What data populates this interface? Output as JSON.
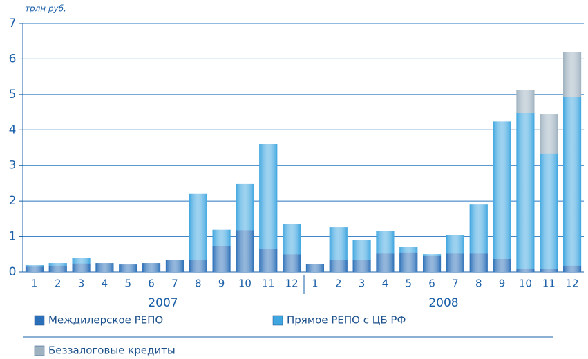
{
  "chart_data": {
    "type": "stacked_bar",
    "y_label": "трлн руб.",
    "categories": [
      "1",
      "2",
      "3",
      "4",
      "5",
      "6",
      "7",
      "8",
      "9",
      "10",
      "11",
      "12",
      "1",
      "2",
      "3",
      "4",
      "5",
      "6",
      "7",
      "8",
      "9",
      "10",
      "11",
      "12"
    ],
    "groups": [
      "2007",
      "2008"
    ],
    "series": [
      {
        "name": "Междилерское РЕПО",
        "color": "#2b6fb8",
        "values": [
          0.15,
          0.18,
          0.24,
          0.25,
          0.21,
          0.25,
          0.33,
          0.33,
          0.72,
          1.18,
          0.66,
          0.5,
          0.22,
          0.33,
          0.35,
          0.52,
          0.55,
          0.45,
          0.52,
          0.52,
          0.37,
          0.1,
          0.1,
          0.18
        ]
      },
      {
        "name": "Прямое РЕПО с ЦБ РФ",
        "color": "#3fa6e0",
        "values": [
          0.04,
          0.07,
          0.16,
          0,
          0,
          0,
          0,
          1.87,
          0.47,
          1.31,
          2.94,
          0.86,
          0,
          0.93,
          0.55,
          0.64,
          0.15,
          0.05,
          0.53,
          1.38,
          3.88,
          4.38,
          3.23,
          4.74
        ]
      },
      {
        "name": "Беззалоговые кредиты",
        "color": "#9fb2c0",
        "values": [
          0,
          0,
          0,
          0,
          0,
          0,
          0,
          0,
          0,
          0,
          0,
          0,
          0,
          0,
          0,
          0,
          0,
          0,
          0,
          0,
          0,
          0.64,
          1.12,
          1.28
        ]
      }
    ],
    "ylim": [
      0,
      7
    ],
    "yticks": [
      0,
      1,
      2,
      3,
      4,
      5,
      6,
      7
    ],
    "grid": true
  }
}
